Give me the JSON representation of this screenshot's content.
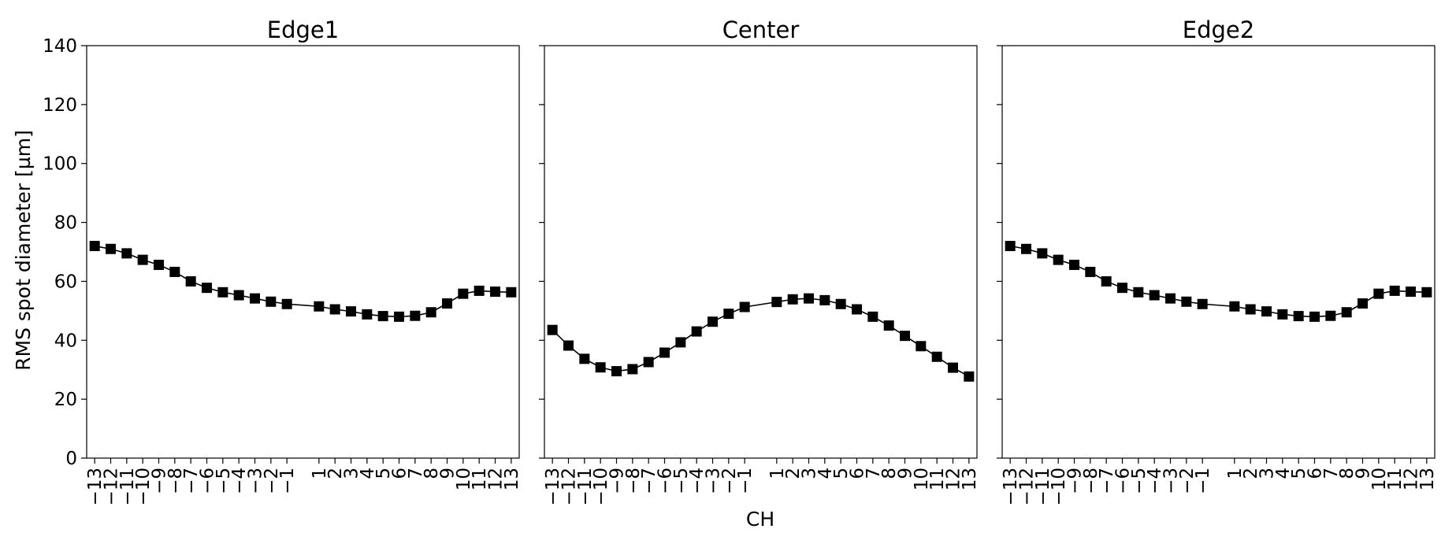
{
  "figure": {
    "ylabel": "RMS spot diameter [µm]",
    "xlabel": "CH"
  },
  "chart_data": [
    {
      "type": "line",
      "title": "Edge1",
      "ylim": [
        0,
        140
      ],
      "yticks": [
        0,
        20,
        40,
        60,
        80,
        100,
        120,
        140
      ],
      "x": [
        -13,
        -12,
        -11,
        -10,
        -9,
        -8,
        -7,
        -6,
        -5,
        -4,
        -3,
        -2,
        -1,
        1,
        2,
        3,
        4,
        5,
        6,
        7,
        8,
        9,
        10,
        11,
        12,
        13
      ],
      "xtick_labels": [
        "−13",
        "−12",
        "−11",
        "−10",
        "−9",
        "−8",
        "−7",
        "−6",
        "−5",
        "−4",
        "−3",
        "−2",
        "−1",
        "1",
        "2",
        "3",
        "4",
        "5",
        "6",
        "7",
        "8",
        "9",
        "10",
        "11",
        "12",
        "13"
      ],
      "values": [
        72.0,
        71.0,
        69.5,
        67.3,
        65.6,
        63.2,
        60.0,
        57.8,
        56.3,
        55.3,
        54.2,
        53.1,
        52.3,
        51.5,
        50.5,
        49.8,
        48.8,
        48.2,
        48.0,
        48.3,
        49.5,
        52.5,
        55.8,
        56.8,
        56.5,
        56.3
      ],
      "marker": "square",
      "color": "#000000",
      "grid": false
    },
    {
      "type": "line",
      "title": "Center",
      "ylim": [
        0,
        140
      ],
      "yticks": [
        0,
        20,
        40,
        60,
        80,
        100,
        120,
        140
      ],
      "x": [
        -13,
        -12,
        -11,
        -10,
        -9,
        -8,
        -7,
        -6,
        -5,
        -4,
        -3,
        -2,
        -1,
        1,
        2,
        3,
        4,
        5,
        6,
        7,
        8,
        9,
        10,
        11,
        12,
        13
      ],
      "xtick_labels": [
        "−13",
        "−12",
        "−11",
        "−10",
        "−9",
        "−8",
        "−7",
        "−6",
        "−5",
        "−4",
        "−3",
        "−2",
        "−1",
        "1",
        "2",
        "3",
        "4",
        "5",
        "6",
        "7",
        "8",
        "9",
        "10",
        "11",
        "12",
        "13"
      ],
      "values": [
        43.5,
        38.2,
        33.7,
        30.8,
        29.5,
        30.2,
        32.6,
        35.8,
        39.3,
        43.0,
        46.3,
        49.0,
        51.3,
        53.0,
        53.9,
        54.2,
        53.6,
        52.3,
        50.5,
        48.0,
        45.0,
        41.5,
        38.0,
        34.4,
        30.7,
        27.7
      ],
      "marker": "square",
      "color": "#000000",
      "grid": false
    },
    {
      "type": "line",
      "title": "Edge2",
      "ylim": [
        0,
        140
      ],
      "yticks": [
        0,
        20,
        40,
        60,
        80,
        100,
        120,
        140
      ],
      "x": [
        -13,
        -12,
        -11,
        -10,
        -9,
        -8,
        -7,
        -6,
        -5,
        -4,
        -3,
        -2,
        -1,
        1,
        2,
        3,
        4,
        5,
        6,
        7,
        8,
        9,
        10,
        11,
        12,
        13
      ],
      "xtick_labels": [
        "−13",
        "−12",
        "−11",
        "−10",
        "−9",
        "−8",
        "−7",
        "−6",
        "−5",
        "−4",
        "−3",
        "−2",
        "−1",
        "1",
        "2",
        "3",
        "4",
        "5",
        "6",
        "7",
        "8",
        "9",
        "10",
        "11",
        "12",
        "13"
      ],
      "values": [
        72.0,
        71.0,
        69.5,
        67.3,
        65.6,
        63.2,
        60.0,
        57.8,
        56.3,
        55.3,
        54.2,
        53.1,
        52.3,
        51.5,
        50.5,
        49.8,
        48.8,
        48.2,
        48.0,
        48.3,
        49.5,
        52.5,
        55.8,
        56.8,
        56.5,
        56.3
      ],
      "marker": "square",
      "color": "#000000",
      "grid": false
    }
  ]
}
